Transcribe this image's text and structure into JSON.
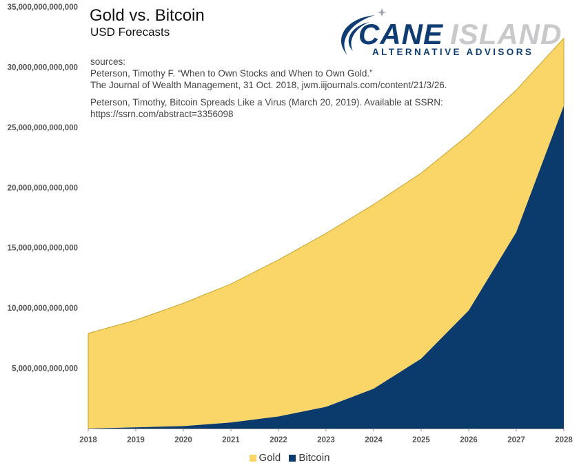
{
  "title": "Gold vs. Bitcoin",
  "subtitle": "USD Forecasts",
  "sources": [
    "sources:",
    "Peterson, Timothy F. “When to Own Stocks and When to Own Gold.”",
    "The Journal of Wealth Management, 31 Oct. 2018, jwm.iijournals.com/content/21/3/26.",
    "Peterson, Timothy, Bitcoin Spreads Like a Virus (March 20, 2019). Available at SSRN:",
    "https://ssrn.com/abstract=3356098"
  ],
  "logo": {
    "name_part1": "CANE",
    "name_part2": "ISLAND",
    "tagline": "ALTERNATIVE ADVISORS"
  },
  "colors": {
    "gold": "#fad669",
    "gold_edge": "#c9a227",
    "bitcoin": "#0b3a6d",
    "logo_blue": "#0f3d73",
    "logo_gray": "#c9c9cb"
  },
  "chart_data": {
    "type": "area",
    "x": [
      "2018",
      "2019",
      "2020",
      "2021",
      "2022",
      "2023",
      "2024",
      "2025",
      "2026",
      "2027",
      "2028"
    ],
    "series": [
      {
        "name": "Gold",
        "values": [
          7900000000000,
          8900000000000,
          10200000000000,
          11500000000000,
          13000000000000,
          14400000000000,
          15300000000000,
          15400000000000,
          14600000000000,
          11800000000000,
          5600000000000
        ]
      },
      {
        "name": "Bitcoin",
        "values": [
          0,
          100000000000,
          200000000000,
          500000000000,
          1000000000000,
          1800000000000,
          3300000000000,
          5800000000000,
          9800000000000,
          16300000000000,
          26800000000000
        ]
      }
    ],
    "stacked": true,
    "ylim": [
      0,
      35000000000000
    ],
    "yticks": [
      "5,000,000,000,000",
      "10,000,000,000,000",
      "15,000,000,000,000",
      "20,000,000,000,000",
      "25,000,000,000,000",
      "30,000,000,000,000",
      "35,000,000,000,000"
    ],
    "legend": [
      "Gold",
      "Bitcoin"
    ],
    "legend_position": "bottom",
    "grid": false
  }
}
